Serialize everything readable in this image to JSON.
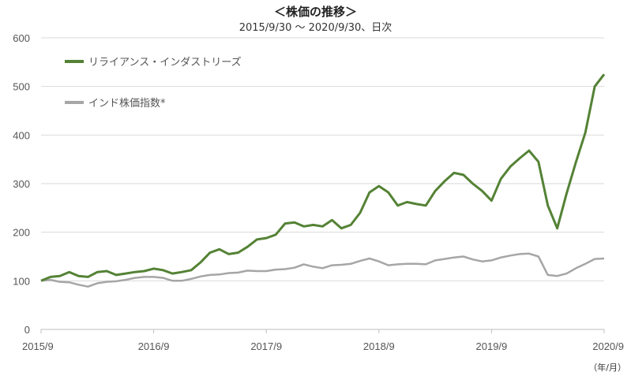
{
  "chart_data": {
    "type": "line",
    "title": "＜株価の推移＞",
    "subtitle": "2015/9/30 ～ 2020/9/30、日次",
    "unit_label": "（年/月）",
    "ylim": [
      0,
      600
    ],
    "yticks": [
      0,
      100,
      200,
      300,
      400,
      500,
      600
    ],
    "xlim": [
      "2015/9",
      "2020/9"
    ],
    "xticks": [
      "2015/9",
      "2016/9",
      "2017/9",
      "2018/9",
      "2019/9",
      "2020/9"
    ],
    "grid": true,
    "legend_position": "top-left",
    "series": [
      {
        "name": "リライアンス・インダストリーズ",
        "color": "#548235",
        "points": [
          [
            "2015/9",
            100
          ],
          [
            "2015/10",
            108
          ],
          [
            "2015/11",
            110
          ],
          [
            "2015/12",
            118
          ],
          [
            "2016/1",
            110
          ],
          [
            "2016/2",
            108
          ],
          [
            "2016/3",
            118
          ],
          [
            "2016/4",
            120
          ],
          [
            "2016/5",
            112
          ],
          [
            "2016/6",
            115
          ],
          [
            "2016/7",
            118
          ],
          [
            "2016/8",
            120
          ],
          [
            "2016/9",
            125
          ],
          [
            "2016/10",
            122
          ],
          [
            "2016/11",
            115
          ],
          [
            "2016/12",
            118
          ],
          [
            "2017/1",
            122
          ],
          [
            "2017/2",
            138
          ],
          [
            "2017/3",
            158
          ],
          [
            "2017/4",
            165
          ],
          [
            "2017/5",
            155
          ],
          [
            "2017/6",
            158
          ],
          [
            "2017/7",
            170
          ],
          [
            "2017/8",
            185
          ],
          [
            "2017/9",
            188
          ],
          [
            "2017/10",
            195
          ],
          [
            "2017/11",
            218
          ],
          [
            "2017/12",
            220
          ],
          [
            "2018/1",
            212
          ],
          [
            "2018/2",
            215
          ],
          [
            "2018/3",
            212
          ],
          [
            "2018/4",
            225
          ],
          [
            "2018/5",
            208
          ],
          [
            "2018/6",
            215
          ],
          [
            "2018/7",
            240
          ],
          [
            "2018/8",
            282
          ],
          [
            "2018/9",
            295
          ],
          [
            "2018/10",
            282
          ],
          [
            "2018/11",
            255
          ],
          [
            "2018/12",
            262
          ],
          [
            "2019/1",
            258
          ],
          [
            "2019/2",
            255
          ],
          [
            "2019/3",
            285
          ],
          [
            "2019/4",
            305
          ],
          [
            "2019/5",
            322
          ],
          [
            "2019/6",
            318
          ],
          [
            "2019/7",
            300
          ],
          [
            "2019/8",
            285
          ],
          [
            "2019/9",
            265
          ],
          [
            "2019/10",
            310
          ],
          [
            "2019/11",
            335
          ],
          [
            "2019/12",
            352
          ],
          [
            "2020/1",
            368
          ],
          [
            "2020/2",
            345
          ],
          [
            "2020/3",
            255
          ],
          [
            "2020/4",
            208
          ],
          [
            "2020/5",
            280
          ],
          [
            "2020/6",
            345
          ],
          [
            "2020/7",
            405
          ],
          [
            "2020/8",
            500
          ],
          [
            "2020/9",
            525
          ]
        ]
      },
      {
        "name": "インド株価指数*",
        "color": "#a6a6a6",
        "points": [
          [
            "2015/9",
            100
          ],
          [
            "2015/10",
            102
          ],
          [
            "2015/11",
            98
          ],
          [
            "2015/12",
            97
          ],
          [
            "2016/1",
            92
          ],
          [
            "2016/2",
            88
          ],
          [
            "2016/3",
            95
          ],
          [
            "2016/4",
            98
          ],
          [
            "2016/5",
            99
          ],
          [
            "2016/6",
            102
          ],
          [
            "2016/7",
            106
          ],
          [
            "2016/8",
            108
          ],
          [
            "2016/9",
            108
          ],
          [
            "2016/10",
            106
          ],
          [
            "2016/11",
            100
          ],
          [
            "2016/12",
            100
          ],
          [
            "2017/1",
            104
          ],
          [
            "2017/2",
            109
          ],
          [
            "2017/3",
            112
          ],
          [
            "2017/4",
            113
          ],
          [
            "2017/5",
            116
          ],
          [
            "2017/6",
            117
          ],
          [
            "2017/7",
            121
          ],
          [
            "2017/8",
            120
          ],
          [
            "2017/9",
            120
          ],
          [
            "2017/10",
            123
          ],
          [
            "2017/11",
            124
          ],
          [
            "2017/12",
            127
          ],
          [
            "2018/1",
            134
          ],
          [
            "2018/2",
            129
          ],
          [
            "2018/3",
            126
          ],
          [
            "2018/4",
            132
          ],
          [
            "2018/5",
            133
          ],
          [
            "2018/6",
            135
          ],
          [
            "2018/7",
            141
          ],
          [
            "2018/8",
            146
          ],
          [
            "2018/9",
            140
          ],
          [
            "2018/10",
            132
          ],
          [
            "2018/11",
            134
          ],
          [
            "2018/12",
            135
          ],
          [
            "2019/1",
            135
          ],
          [
            "2019/2",
            134
          ],
          [
            "2019/3",
            142
          ],
          [
            "2019/4",
            145
          ],
          [
            "2019/5",
            148
          ],
          [
            "2019/6",
            150
          ],
          [
            "2019/7",
            144
          ],
          [
            "2019/8",
            140
          ],
          [
            "2019/9",
            142
          ],
          [
            "2019/10",
            148
          ],
          [
            "2019/11",
            152
          ],
          [
            "2019/12",
            155
          ],
          [
            "2020/1",
            156
          ],
          [
            "2020/2",
            150
          ],
          [
            "2020/3",
            112
          ],
          [
            "2020/4",
            110
          ],
          [
            "2020/5",
            115
          ],
          [
            "2020/6",
            126
          ],
          [
            "2020/7",
            135
          ],
          [
            "2020/8",
            145
          ],
          [
            "2020/9",
            146
          ]
        ]
      }
    ]
  }
}
